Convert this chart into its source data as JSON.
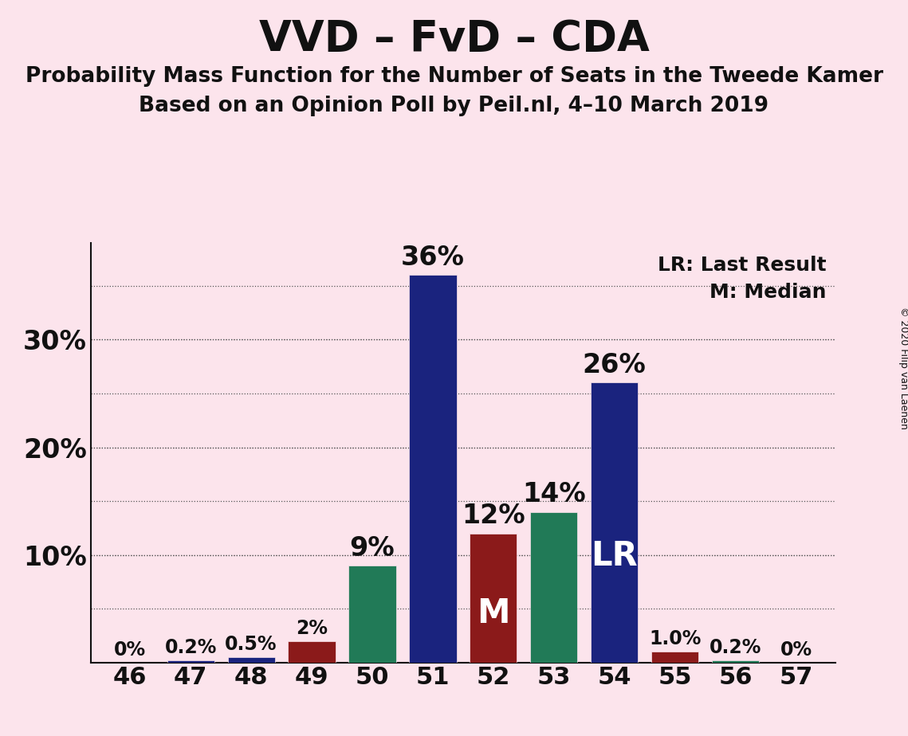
{
  "title": "VVD – FvD – CDA",
  "subtitle1": "Probability Mass Function for the Number of Seats in the Tweede Kamer",
  "subtitle2": "Based on an Opinion Poll by Peil.nl, 4–10 March 2019",
  "copyright": "© 2020 Filip van Laenen",
  "seats": [
    46,
    47,
    48,
    49,
    50,
    51,
    52,
    53,
    54,
    55,
    56,
    57
  ],
  "values": [
    0.0,
    0.2,
    0.5,
    2.0,
    9.0,
    36.0,
    12.0,
    14.0,
    26.0,
    1.0,
    0.2,
    0.0
  ],
  "labels": [
    "0%",
    "0.2%",
    "0.5%",
    "2%",
    "9%",
    "36%",
    "12%",
    "14%",
    "26%",
    "1.0%",
    "0.2%",
    "0%"
  ],
  "colors": [
    "#1a237e",
    "#1a237e",
    "#1a237e",
    "#8b1a1a",
    "#217a57",
    "#1a237e",
    "#8b1a1a",
    "#217a57",
    "#1a237e",
    "#8b1a1a",
    "#217a57",
    "#1a237e"
  ],
  "median_seat": 52,
  "lr_seat": 54,
  "background_color": "#fce4ec",
  "axis_color": "#111111",
  "grid_ticks": [
    5,
    10,
    15,
    20,
    25,
    30,
    35
  ],
  "ytick_positions": [
    10,
    20,
    30
  ],
  "ytick_labels": [
    "10%",
    "20%",
    "30%"
  ],
  "ylim": [
    0,
    39
  ],
  "legend_lr": "LR: Last Result",
  "legend_m": "M: Median",
  "title_fontsize": 38,
  "subtitle_fontsize": 19,
  "label_fontsize_small": 17,
  "label_fontsize_large": 24,
  "tick_fontsize": 22,
  "ytick_fontsize": 24,
  "inside_label_fontsize": 30
}
